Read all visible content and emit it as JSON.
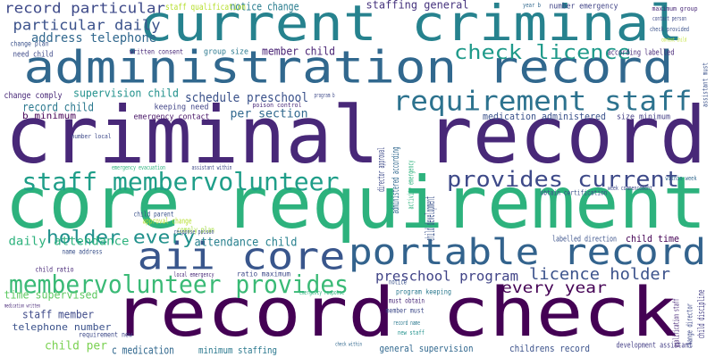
{
  "words": [
    "record check",
    "criminal record",
    "core requirement",
    "administration record",
    "current criminal",
    "portable record",
    "aii core",
    "membervolunteer provides",
    "staff membervolunteer",
    "requirement staff",
    "provides current",
    "check licence",
    "holder every",
    "licence holder",
    "every year",
    "preschool program",
    "record particular",
    "particular daily",
    "address telephone",
    "staffing general",
    "notice change",
    "staff qualification",
    "record child",
    "schedule preschool",
    "supervision child",
    "per section",
    "member child",
    "group size",
    "written consent",
    "change plan",
    "need child",
    "change comply",
    "b minimum",
    "keeping need",
    "emergency contact",
    "poison control",
    "medication administered",
    "size minimum",
    "according labelled",
    "number emergency",
    "maximum group",
    "contact person",
    "check provided",
    "content child",
    "year b",
    "number local",
    "daily attendance",
    "attendance child",
    "name address",
    "child ratio",
    "time supervised",
    "staff member",
    "telephone number",
    "medication written",
    "child per",
    "requirement new",
    "c medication",
    "minimum staffing",
    "general supervision",
    "childrens record",
    "development assistant",
    "ratio maximum",
    "local emergency",
    "approval change",
    "comply plan",
    "child parent",
    "emergency evacuation",
    "assistant within",
    "response poison",
    "labelled direction",
    "child time",
    "obtain certification",
    "week commencement",
    "within week",
    "notice",
    "program keeping",
    "must obtain",
    "member must",
    "record name",
    "new staff",
    "check within",
    "emergency response",
    "program b",
    "director approval",
    "administered according",
    "child development",
    "activity emergency",
    "qualification staff",
    "change director",
    "child discipline",
    "assistant must"
  ]
}
